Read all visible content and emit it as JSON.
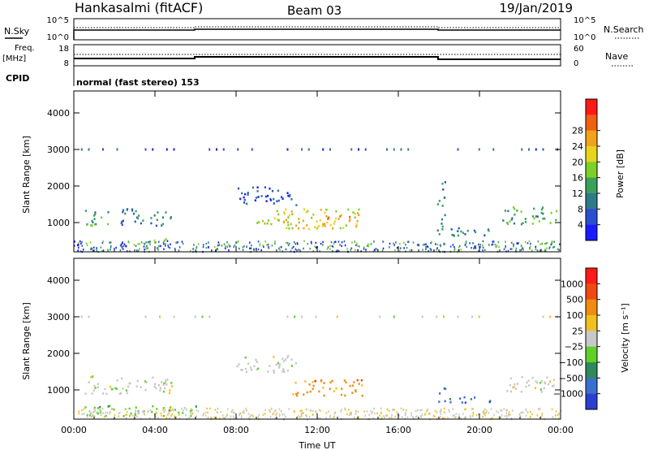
{
  "header": {
    "station": "Hankasalmi (fitACF)",
    "beam": "Beam 03",
    "date": "19/Jan/2019"
  },
  "noise_panel": {
    "left_label": "N.Sky",
    "right_label": "N.Search",
    "left_ticks": [
      "10^5",
      "10^0"
    ],
    "right_ticks": [
      "10^5",
      "10^0"
    ]
  },
  "freq_panel": {
    "label_line1": "Freq.",
    "label_line2": "[MHz]",
    "right_label": "Nave",
    "left_ticks": [
      "18",
      "8"
    ],
    "right_ticks": [
      "60",
      "0"
    ],
    "cpid_label": "CPID",
    "cpid_text": "normal (fast stereo) 153"
  },
  "chart_data": [
    {
      "type": "heatmap",
      "name_hint": "power",
      "xlabel": "",
      "ylabel": "Slant Range [km]",
      "x_ticks": [
        "00:00",
        "04:00",
        "08:00",
        "12:00",
        "16:00",
        "20:00",
        "00:00"
      ],
      "y_ticks": [
        "1000",
        "2000",
        "3000",
        "4000"
      ],
      "ylim": [
        200,
        4600
      ],
      "colorbar": {
        "label": "Power [dB]",
        "ticks": [
          "4",
          "8",
          "12",
          "16",
          "20",
          "24",
          "28"
        ],
        "colors": [
          "#1a1aff",
          "#2a4fd0",
          "#2e7a8a",
          "#3aa05a",
          "#7dd02a",
          "#e8d41c",
          "#f2a21a",
          "#f06010",
          "#ff1a1a"
        ]
      },
      "features": [
        {
          "time": [
            0.5,
            1.8
          ],
          "range_km": [
            900,
            1350
          ],
          "level_db": 12
        },
        {
          "time": [
            2.3,
            4.8
          ],
          "range_km": [
            900,
            1400
          ],
          "level_db": 10
        },
        {
          "time": [
            3.4,
            4.6
          ],
          "range_km": [
            420,
            600
          ],
          "level_db": 18
        },
        {
          "time": [
            8.0,
            11.0
          ],
          "range_km": [
            1500,
            2000
          ],
          "level_db": 6
        },
        {
          "time": [
            9.0,
            14.2
          ],
          "range_km": [
            850,
            1400
          ],
          "level_db": 20
        },
        {
          "time": [
            12.0,
            14.0
          ],
          "range_km": [
            900,
            1200
          ],
          "level_db": 26
        },
        {
          "time": [
            17.9,
            18.3
          ],
          "range_km": [
            700,
            2200
          ],
          "level_db": 10
        },
        {
          "time": [
            18.5,
            21.0
          ],
          "range_km": [
            650,
            900
          ],
          "level_db": 10
        },
        {
          "time": [
            21.0,
            23.8
          ],
          "range_km": [
            950,
            1450
          ],
          "level_db": 12
        },
        {
          "time": [
            0.0,
            24.0
          ],
          "range_km": [
            3000,
            3000
          ],
          "level_db": 6
        }
      ]
    },
    {
      "type": "heatmap",
      "name_hint": "velocity",
      "xlabel": "Time UT",
      "ylabel": "Slant Range [km]",
      "x_ticks": [
        "00:00",
        "04:00",
        "08:00",
        "12:00",
        "16:00",
        "20:00",
        "00:00"
      ],
      "y_ticks": [
        "1000",
        "2000",
        "3000",
        "4000"
      ],
      "ylim": [
        200,
        4600
      ],
      "colorbar": {
        "label": "Velocity [m s⁻¹]",
        "ticks": [
          "1000",
          "500",
          "100",
          "25",
          "−25",
          "−100",
          "−500",
          "−1000"
        ],
        "colors": [
          "#2a3fd0",
          "#3a6fd0",
          "#2e8a5a",
          "#5fd028",
          "#c8c8c8",
          "#f0c020",
          "#f08c10",
          "#f04a10",
          "#ff1a1a"
        ]
      },
      "features": [
        {
          "time": [
            0.5,
            4.8
          ],
          "range_km": [
            900,
            1400
          ],
          "velocity": 0
        },
        {
          "time": [
            0.5,
            6.0
          ],
          "range_km": [
            300,
            600
          ],
          "velocity": -50
        },
        {
          "time": [
            8.0,
            11.0
          ],
          "range_km": [
            1500,
            2000
          ],
          "velocity": 0
        },
        {
          "time": [
            10.5,
            14.2
          ],
          "range_km": [
            850,
            1300
          ],
          "velocity": 150
        },
        {
          "time": [
            17.9,
            18.3
          ],
          "range_km": [
            700,
            1200
          ],
          "velocity": -400
        },
        {
          "time": [
            18.5,
            20.5
          ],
          "range_km": [
            650,
            850
          ],
          "velocity": -300
        },
        {
          "time": [
            21.0,
            23.8
          ],
          "range_km": [
            950,
            1400
          ],
          "velocity": 0
        },
        {
          "time": [
            0.0,
            24.0
          ],
          "range_km": [
            3000,
            3000
          ],
          "velocity": 20
        }
      ]
    }
  ]
}
